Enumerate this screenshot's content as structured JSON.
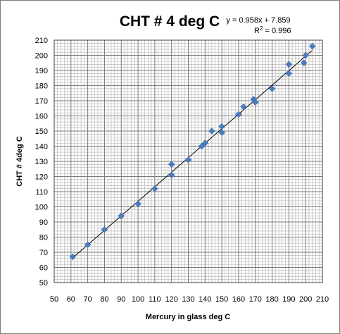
{
  "chart_data": {
    "type": "scatter",
    "title": "CHT # 4  deg C",
    "xlabel": "Mercury in glass  deg C",
    "ylabel": "CHT # 4deg C",
    "xlim": [
      50,
      210
    ],
    "ylim": [
      50,
      210
    ],
    "x_ticks": [
      50,
      60,
      70,
      80,
      90,
      100,
      110,
      120,
      130,
      140,
      150,
      160,
      170,
      180,
      190,
      200,
      210
    ],
    "y_ticks": [
      50,
      60,
      70,
      80,
      90,
      100,
      110,
      120,
      130,
      140,
      150,
      160,
      170,
      180,
      190,
      200,
      210
    ],
    "grid": true,
    "minor_grid": true,
    "marker_color": "#4a7bbf",
    "trendline_color": "#000000",
    "trendline": {
      "equation_text": "y = 0.958x + 7.859",
      "r2_prefix": "R",
      "r2_exponent": "2",
      "r2_suffix": " = 0.996",
      "slope": 0.958,
      "intercept": 7.859
    },
    "series": [
      {
        "points": [
          [
            61,
            67
          ],
          [
            70,
            75
          ],
          [
            80,
            85
          ],
          [
            90,
            94
          ],
          [
            100,
            102
          ],
          [
            110,
            112
          ],
          [
            120,
            121
          ],
          [
            120,
            128
          ],
          [
            130,
            131
          ],
          [
            138,
            140
          ],
          [
            140,
            142
          ],
          [
            144,
            150
          ],
          [
            150,
            149
          ],
          [
            150,
            153
          ],
          [
            160,
            161
          ],
          [
            163,
            166
          ],
          [
            169,
            171
          ],
          [
            170,
            169
          ],
          [
            180,
            178
          ],
          [
            190,
            188
          ],
          [
            190,
            194
          ],
          [
            199,
            195
          ],
          [
            200,
            200
          ],
          [
            204,
            206
          ]
        ]
      }
    ]
  }
}
